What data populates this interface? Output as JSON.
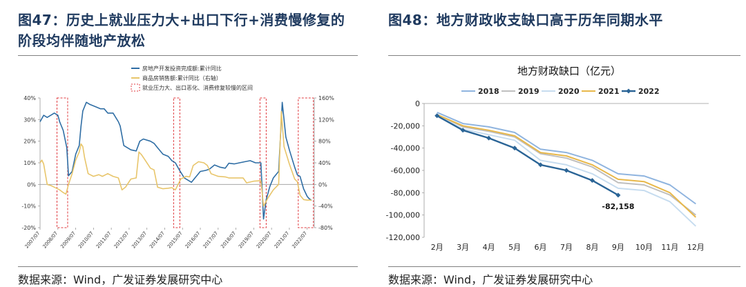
{
  "left": {
    "title": "图47：历史上就业压力大+出口下行+消费慢修复的阶段均伴随地产放松",
    "source": "数据来源：Wind，广发证券发展研究中心"
  },
  "right": {
    "title": "图48：地方财政收支缺口高于历年同期水平",
    "source": "数据来源：Wind，广发证券发展研究中心"
  },
  "chart_data": [
    {
      "type": "line",
      "title": "",
      "x_ticks": [
        "2007/07",
        "2008/07",
        "2009/07",
        "2010/07",
        "2011/07",
        "2012/07",
        "2013/07",
        "2014/07",
        "2015/07",
        "2016/07",
        "2017/07",
        "2018/07",
        "2019/07",
        "2020/07",
        "2021/07",
        "2022/07"
      ],
      "y_left": {
        "min": -20,
        "max": 40,
        "ticks": [
          -20,
          -10,
          0,
          10,
          20,
          30,
          40
        ],
        "unit": "%"
      },
      "y_right": {
        "min": -80,
        "max": 160,
        "ticks": [
          -80,
          -40,
          0,
          40,
          80,
          120,
          160
        ],
        "unit": "%"
      },
      "legend": [
        {
          "label": "房地产开发投资完成额:累计同比",
          "color": "#2e6da4",
          "kind": "line"
        },
        {
          "label": "商品房销售额:累计同比（右轴）",
          "color": "#e8c56a",
          "kind": "line"
        },
        {
          "label": "就业压力大、出口恶化、消费修复较慢的区间",
          "color": "#e0393e",
          "kind": "dashed-box"
        }
      ],
      "series": [
        {
          "name": "房地产开发投资完成额:累计同比",
          "axis": "left",
          "color": "#2e6da4",
          "points": [
            [
              2007.5,
              29
            ],
            [
              2007.7,
              32
            ],
            [
              2007.9,
              31
            ],
            [
              2008.1,
              32
            ],
            [
              2008.3,
              33
            ],
            [
              2008.5,
              32
            ],
            [
              2008.6,
              29
            ],
            [
              2008.8,
              25
            ],
            [
              2009.0,
              17
            ],
            [
              2009.1,
              4
            ],
            [
              2009.3,
              6
            ],
            [
              2009.5,
              14
            ],
            [
              2009.7,
              18
            ],
            [
              2009.8,
              27
            ],
            [
              2009.9,
              34
            ],
            [
              2010.1,
              38
            ],
            [
              2010.3,
              37
            ],
            [
              2010.6,
              36
            ],
            [
              2010.9,
              35
            ],
            [
              2011.1,
              35
            ],
            [
              2011.3,
              33
            ],
            [
              2011.6,
              33
            ],
            [
              2011.9,
              29
            ],
            [
              2012.0,
              27
            ],
            [
              2012.2,
              18
            ],
            [
              2012.6,
              16
            ],
            [
              2012.9,
              15.5
            ],
            [
              2013.1,
              20
            ],
            [
              2013.3,
              21
            ],
            [
              2013.7,
              20
            ],
            [
              2013.9,
              19
            ],
            [
              2014.1,
              17
            ],
            [
              2014.4,
              14
            ],
            [
              2014.7,
              13
            ],
            [
              2014.9,
              11
            ],
            [
              2015.1,
              10
            ],
            [
              2015.3,
              7
            ],
            [
              2015.6,
              3
            ],
            [
              2015.8,
              2
            ],
            [
              2016.0,
              1
            ],
            [
              2016.2,
              3
            ],
            [
              2016.5,
              6
            ],
            [
              2016.8,
              6.5
            ],
            [
              2017.0,
              7
            ],
            [
              2017.3,
              9
            ],
            [
              2017.6,
              8
            ],
            [
              2017.9,
              7.5
            ],
            [
              2018.1,
              9.8
            ],
            [
              2018.4,
              9.5
            ],
            [
              2018.7,
              10
            ],
            [
              2019.0,
              10.5
            ],
            [
              2019.3,
              11
            ],
            [
              2019.6,
              10
            ],
            [
              2019.9,
              10
            ],
            [
              2020.05,
              -16
            ],
            [
              2020.2,
              -7
            ],
            [
              2020.4,
              -1
            ],
            [
              2020.6,
              3
            ],
            [
              2020.9,
              6
            ],
            [
              2021.1,
              38
            ],
            [
              2021.3,
              22
            ],
            [
              2021.5,
              16
            ],
            [
              2021.8,
              8
            ],
            [
              2021.95,
              4.4
            ],
            [
              2022.1,
              3.7
            ],
            [
              2022.3,
              -2
            ],
            [
              2022.5,
              -5.5
            ],
            [
              2022.6,
              -6.5
            ],
            [
              2022.75,
              -7.4
            ]
          ]
        },
        {
          "name": "商品房销售额:累计同比（右轴）",
          "axis": "right",
          "color": "#e8c56a",
          "points": [
            [
              2007.5,
              40
            ],
            [
              2007.6,
              45
            ],
            [
              2007.7,
              38
            ],
            [
              2007.9,
              0
            ],
            [
              2008.1,
              -2
            ],
            [
              2008.3,
              -5
            ],
            [
              2008.6,
              -10
            ],
            [
              2008.8,
              -15
            ],
            [
              2008.95,
              -18
            ],
            [
              2009.1,
              0
            ],
            [
              2009.3,
              20
            ],
            [
              2009.5,
              45
            ],
            [
              2009.7,
              60
            ],
            [
              2009.8,
              75
            ],
            [
              2009.9,
              70
            ],
            [
              2010.0,
              50
            ],
            [
              2010.2,
              20
            ],
            [
              2010.5,
              15
            ],
            [
              2010.8,
              18
            ],
            [
              2011.0,
              15
            ],
            [
              2011.3,
              20
            ],
            [
              2011.6,
              15
            ],
            [
              2011.9,
              12
            ],
            [
              2012.1,
              -10
            ],
            [
              2012.3,
              -5
            ],
            [
              2012.6,
              10
            ],
            [
              2012.9,
              12
            ],
            [
              2013.05,
              60
            ],
            [
              2013.2,
              55
            ],
            [
              2013.4,
              45
            ],
            [
              2013.7,
              30
            ],
            [
              2013.9,
              27
            ],
            [
              2014.1,
              -5
            ],
            [
              2014.4,
              -8
            ],
            [
              2014.7,
              -7
            ],
            [
              2014.9,
              -6
            ],
            [
              2015.1,
              -10
            ],
            [
              2015.4,
              10
            ],
            [
              2015.7,
              15
            ],
            [
              2015.9,
              14
            ],
            [
              2016.1,
              35
            ],
            [
              2016.4,
              42
            ],
            [
              2016.7,
              40
            ],
            [
              2016.9,
              35
            ],
            [
              2017.1,
              20
            ],
            [
              2017.5,
              15
            ],
            [
              2017.9,
              14
            ],
            [
              2018.1,
              12
            ],
            [
              2018.5,
              12
            ],
            [
              2018.9,
              12
            ],
            [
              2019.1,
              3
            ],
            [
              2019.5,
              6
            ],
            [
              2019.9,
              7
            ],
            [
              2020.05,
              -40
            ],
            [
              2020.3,
              -25
            ],
            [
              2020.6,
              -10
            ],
            [
              2020.9,
              0
            ],
            [
              2021.05,
              135
            ],
            [
              2021.2,
              70
            ],
            [
              2021.5,
              38
            ],
            [
              2021.8,
              10
            ],
            [
              2021.95,
              5
            ],
            [
              2022.1,
              -20
            ],
            [
              2022.3,
              -28
            ],
            [
              2022.5,
              -29
            ],
            [
              2022.75,
              -29
            ]
          ]
        }
      ],
      "highlight_ranges": [
        [
          2008.45,
          2009.05
        ],
        [
          2015.0,
          2015.35
        ],
        [
          2019.85,
          2020.2
        ],
        [
          2022.0,
          2022.85
        ]
      ]
    },
    {
      "type": "line",
      "title": "地方财政缺口（亿元）",
      "categories": [
        "2月",
        "3月",
        "4月",
        "5月",
        "6月",
        "7月",
        "8月",
        "9月",
        "10月",
        "11月",
        "12月"
      ],
      "ylim": [
        -120000,
        0
      ],
      "y_ticks": [
        "0",
        "-20,000",
        "-40,000",
        "-60,000",
        "-80,000",
        "-100,000",
        "-120,000"
      ],
      "y_tick_values": [
        0,
        -20000,
        -40000,
        -60000,
        -80000,
        -100000,
        -120000
      ],
      "legend_position": "top",
      "series": [
        {
          "name": "2018",
          "color": "#8fb4df",
          "width": 2,
          "values": [
            -8000,
            -18000,
            -21000,
            -26000,
            -41000,
            -44000,
            -51000,
            -63000,
            -65000,
            -73000,
            -90000
          ]
        },
        {
          "name": "2019",
          "color": "#bfbfbf",
          "width": 2,
          "values": [
            -10000,
            -21000,
            -25000,
            -30000,
            -45000,
            -49000,
            -57000,
            -71000,
            -73000,
            -82000,
            -100000
          ]
        },
        {
          "name": "2020",
          "color": "#c6dcef",
          "width": 2,
          "values": [
            -11000,
            -23000,
            -28000,
            -33000,
            -51000,
            -55000,
            -63000,
            -76000,
            -78000,
            -88000,
            -110000
          ]
        },
        {
          "name": "2021",
          "color": "#e8b84a",
          "width": 2,
          "values": [
            -10000,
            -20000,
            -24000,
            -29000,
            -44000,
            -47000,
            -55000,
            -68000,
            -70000,
            -80000,
            -102000
          ]
        },
        {
          "name": "2022",
          "color": "#2a6496",
          "width": 2.4,
          "marker": "diamond",
          "values": [
            -11000,
            -24000,
            -31000,
            -40000,
            -55000,
            -60000,
            -69000,
            -82158,
            null,
            null,
            null
          ]
        }
      ],
      "annotation": {
        "label": "-82,158",
        "category": "9月",
        "value": -82158
      }
    }
  ]
}
